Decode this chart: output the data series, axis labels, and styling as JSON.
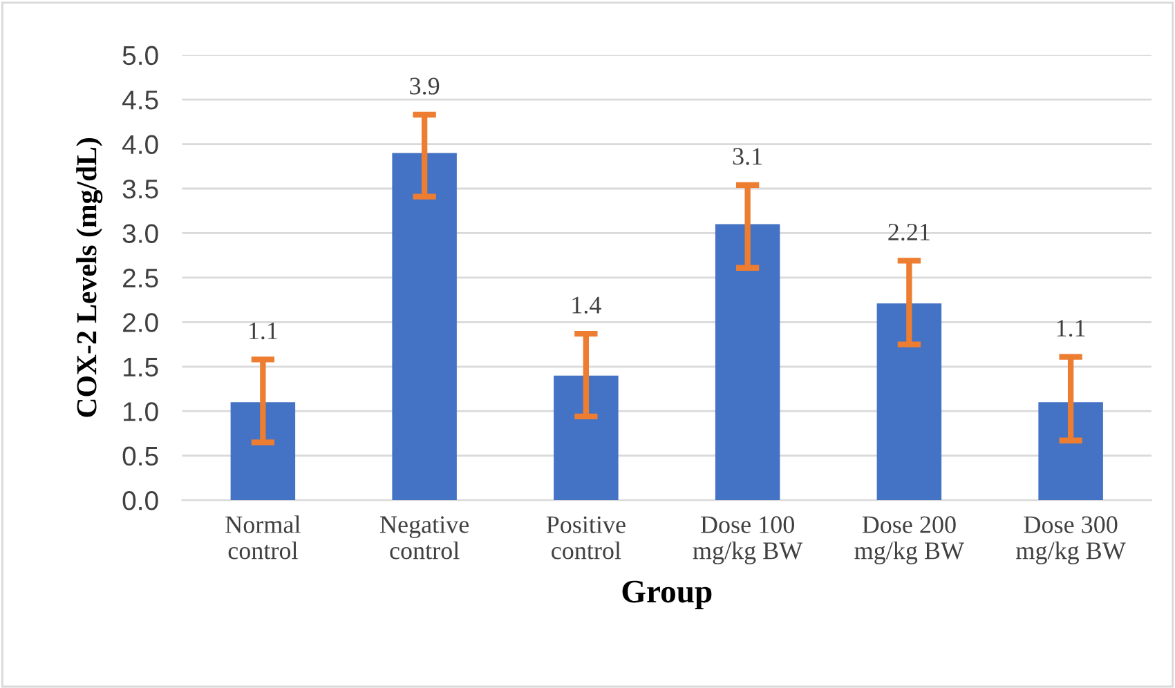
{
  "chart_data": {
    "type": "bar",
    "xlabel": "Group",
    "ylabel": "COX-2 Levels (mg/dL)",
    "categories": [
      "Normal\ncontrol",
      "Negative\ncontrol",
      "Positive\ncontrol",
      "Dose 100\nmg/kg BW",
      "Dose 200\nmg/kg BW",
      "Dose 300\nmg/kg BW"
    ],
    "values": [
      1.1,
      3.9,
      1.4,
      3.1,
      2.21,
      1.1
    ],
    "errors": [
      [
        0.65,
        1.58
      ],
      [
        3.41,
        4.33
      ],
      [
        0.94,
        1.87
      ],
      [
        2.61,
        3.54
      ],
      [
        1.75,
        2.69
      ],
      [
        0.67,
        1.61
      ]
    ],
    "color": "#4472c4",
    "data_labels": true,
    "ylim": [
      0,
      5
    ],
    "yticks": [
      {
        "value": 0,
        "label": "0.0"
      },
      {
        "value": 0.5,
        "label": "0.5"
      },
      {
        "value": 1,
        "label": "1.0"
      },
      {
        "value": 1.5,
        "label": "1.5"
      },
      {
        "value": 2,
        "label": "2.0"
      },
      {
        "value": 2.5,
        "label": "2.5"
      },
      {
        "value": 3,
        "label": "3.0"
      },
      {
        "value": 3.5,
        "label": "3.5"
      },
      {
        "value": 4,
        "label": "4.0"
      },
      {
        "value": 4.5,
        "label": "4.5"
      },
      {
        "value": 5,
        "label": "5.0"
      }
    ],
    "grid": "y",
    "legend": false
  }
}
